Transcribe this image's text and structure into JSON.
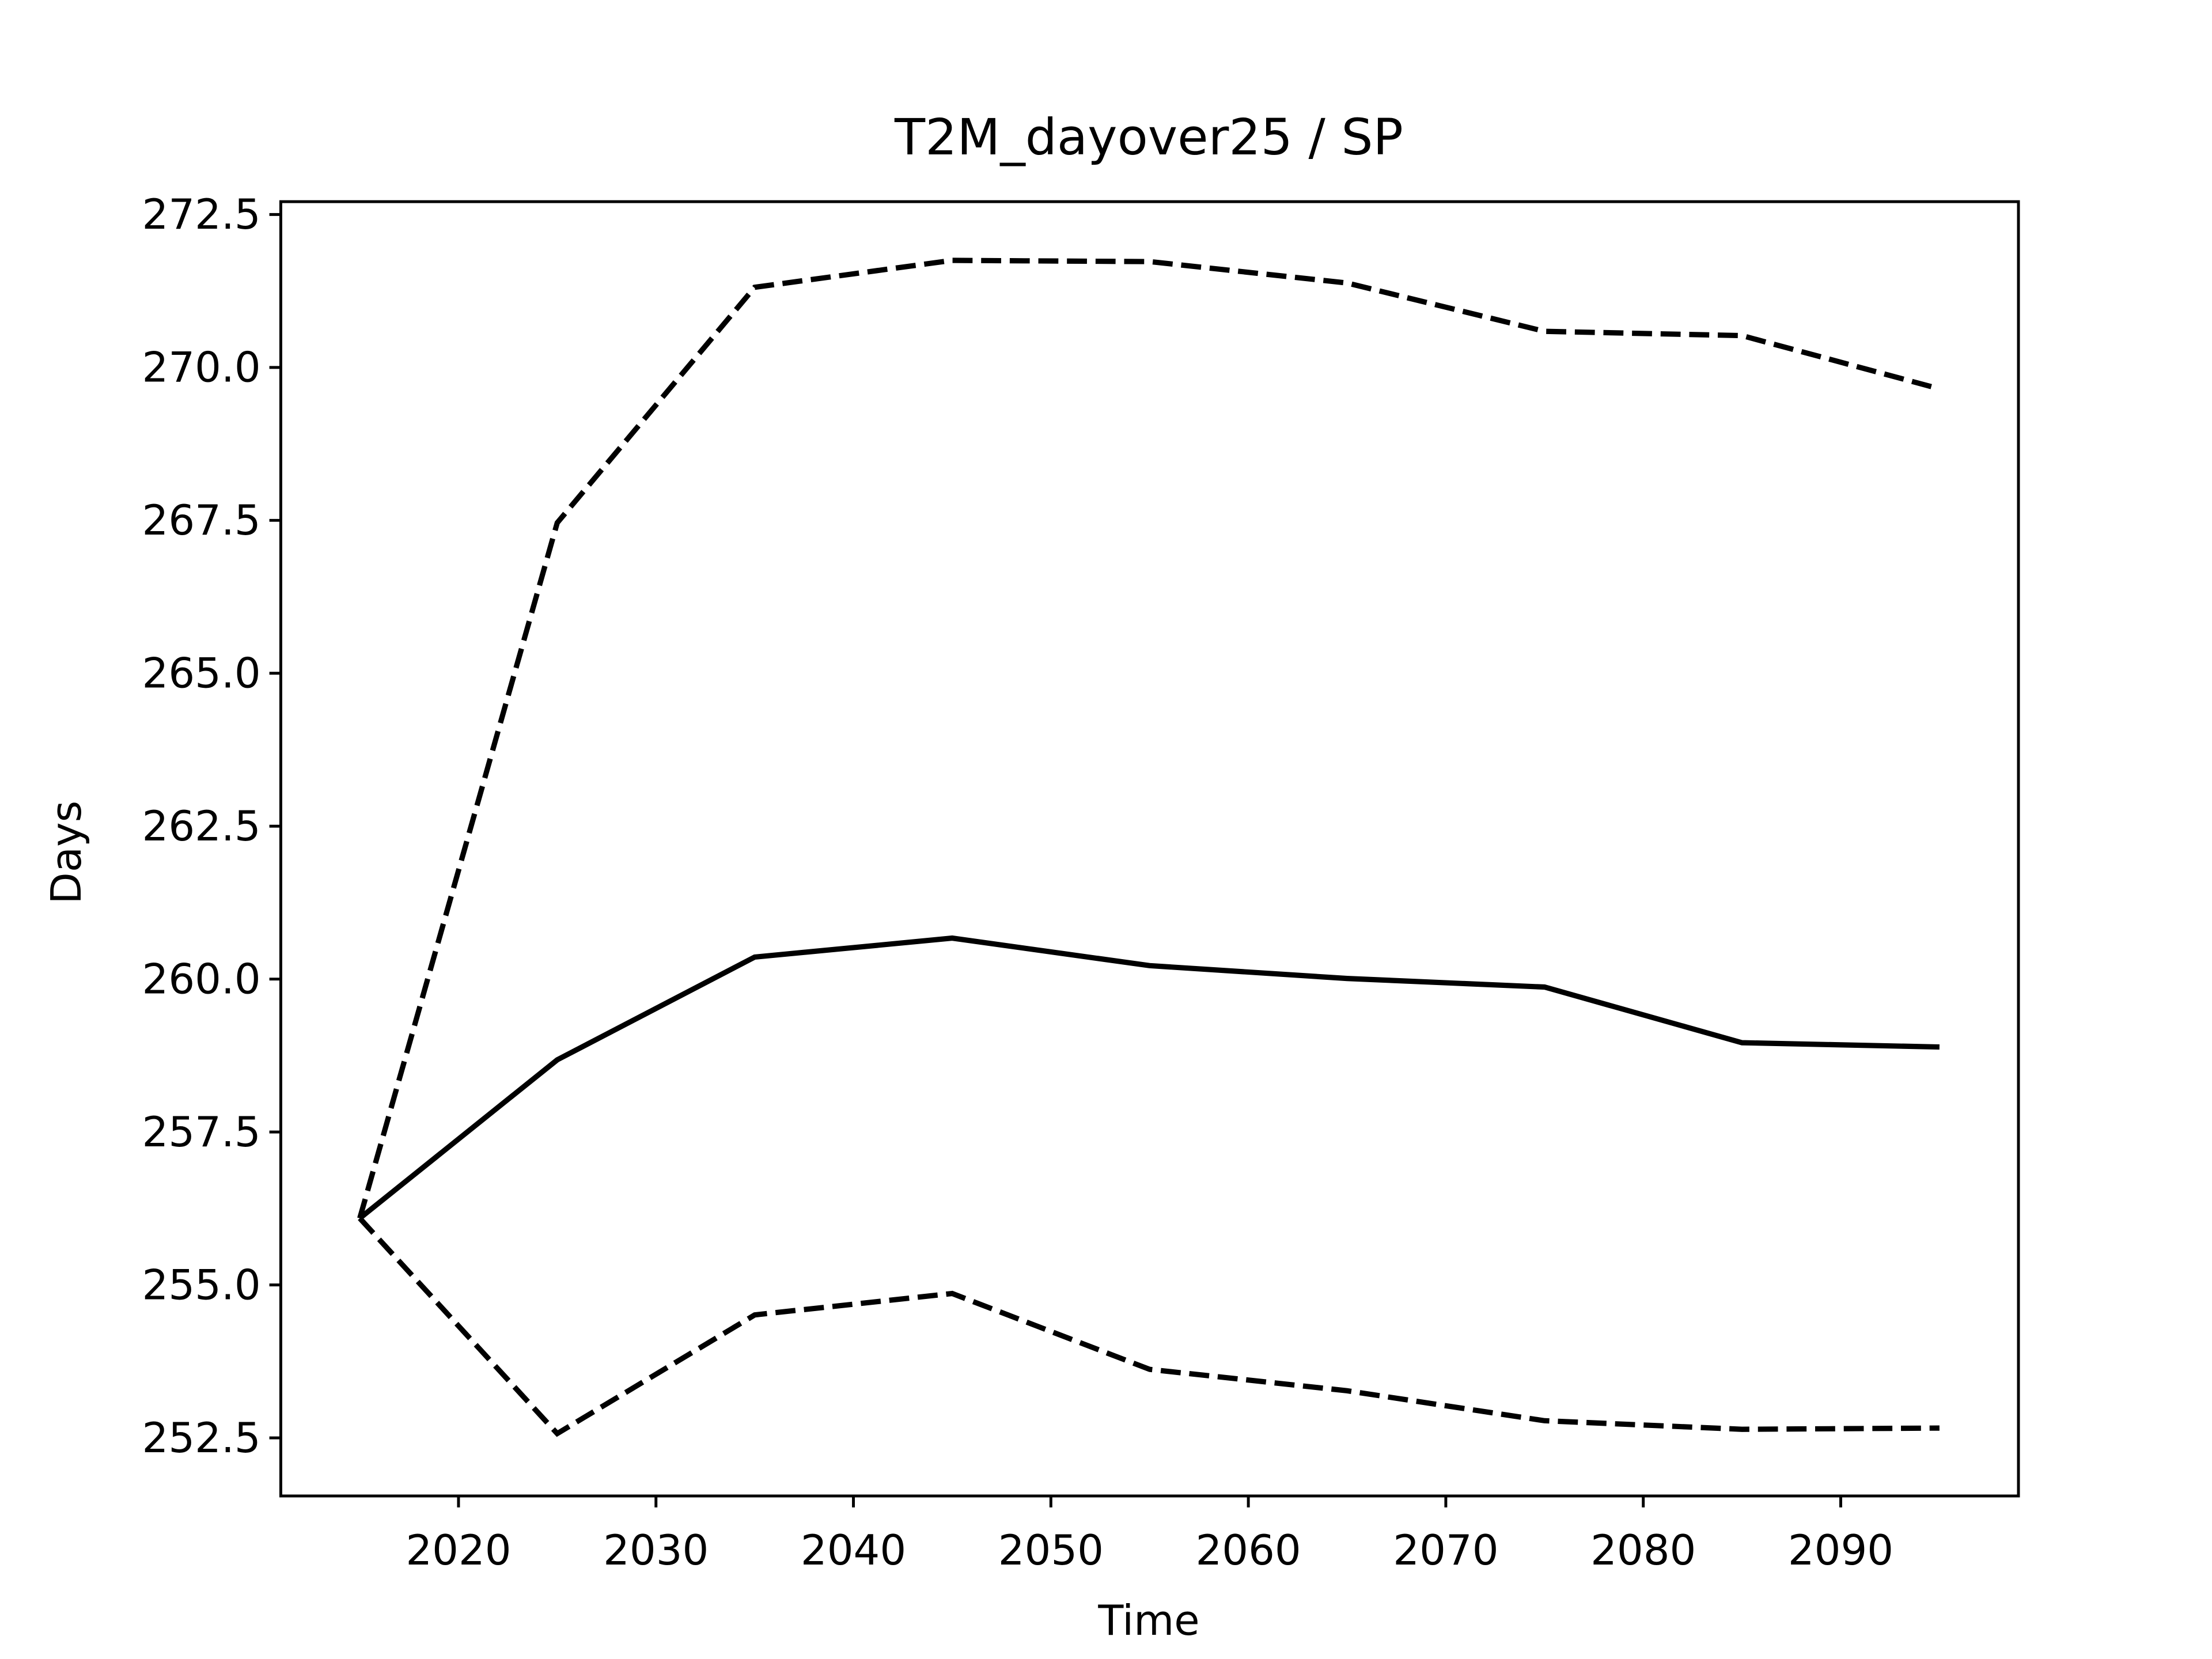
{
  "chart_data": {
    "type": "line",
    "title": "T2M_dayover25 / SP",
    "x_label": "Time",
    "y_label": "Days",
    "x": [
      2015,
      2025,
      2035,
      2045,
      2055,
      2065,
      2075,
      2085,
      2095
    ],
    "series": [
      {
        "color": "#000000",
        "dashed": false,
        "values": [
          256.09,
          258.68,
          260.36,
          260.67,
          260.22,
          260.01,
          259.87,
          258.96,
          258.89
        ]
      },
      {
        "color": "#000000",
        "dashed": true,
        "values": [
          256.09,
          267.46,
          271.31,
          271.75,
          271.73,
          271.38,
          270.59,
          270.52,
          269.65
        ]
      },
      {
        "color": "#000000",
        "dashed": true,
        "values": [
          256.09,
          252.57,
          254.51,
          254.86,
          253.62,
          253.27,
          252.78,
          252.64,
          252.66
        ]
      }
    ],
    "xlim": [
      2011,
      2099
    ],
    "xticks": [
      2020,
      2030,
      2040,
      2050,
      2060,
      2070,
      2080,
      2090
    ],
    "ylim": [
      251.55,
      272.71
    ],
    "yticks": [
      252.5,
      {
        "value": 255,
        "label": "255.0"
      },
      257.5,
      {
        "value": 260,
        "label": "260.0"
      },
      262.5,
      {
        "value": 265,
        "label": "265.0"
      },
      267.5,
      {
        "value": 270,
        "label": "270.0"
      },
      272.5
    ],
    "grid": false
  }
}
